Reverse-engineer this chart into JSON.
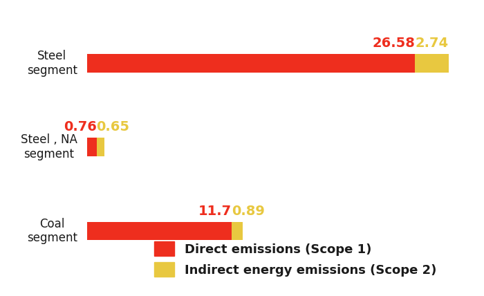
{
  "background_color": "#ffffff",
  "categories": [
    "Steel\nsegment",
    "Steel , NA\nsegment",
    "Coal\nsegment"
  ],
  "direct_values": [
    26.58,
    0.76,
    11.7
  ],
  "indirect_values": [
    2.74,
    0.65,
    0.89
  ],
  "direct_color": "#ee2e1e",
  "indirect_color": "#e8c840",
  "direct_label": "Direct emissions (Scope 1)",
  "indirect_label": "Indirect energy emissions (Scope 2)",
  "direct_text_color": "#ee2e1e",
  "indirect_text_color": "#e8c840",
  "category_text_color": "#1a1a1a",
  "legend_text_color": "#1a1a1a",
  "bar_height": 0.22,
  "xlim": [
    0,
    31
  ],
  "figsize": [
    7.0,
    4.28
  ],
  "dpi": 100,
  "value_fontsize": 14,
  "label_fontsize": 12,
  "legend_fontsize": 13
}
